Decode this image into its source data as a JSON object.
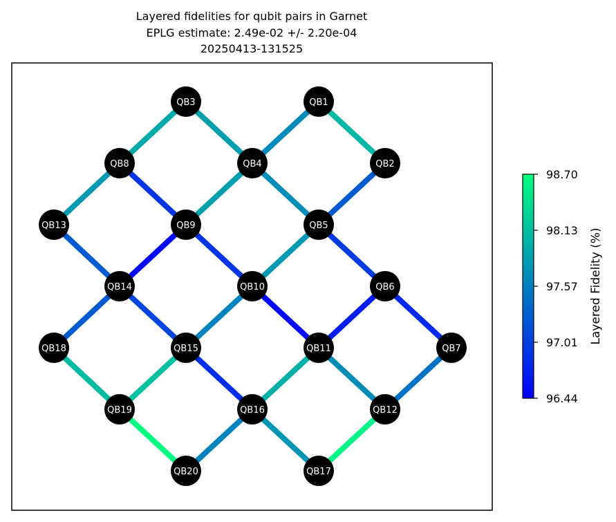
{
  "title_lines": [
    "Layered fidelities for qubit pairs in Garnet",
    "EPLG estimate: 2.49e-02 +/- 2.20e-04",
    "20250413-131525"
  ],
  "colorbar": {
    "label": "Layered Fidelity (%)",
    "ticks": [
      "98.70",
      "98.13",
      "97.57",
      "97.01",
      "96.44"
    ],
    "min": 96.44,
    "max": 98.7,
    "colormap": "winter",
    "color_low": "#0000ff",
    "color_high": "#00ff80"
  },
  "nodes": [
    "QB1",
    "QB2",
    "QB3",
    "QB4",
    "QB5",
    "QB6",
    "QB7",
    "QB8",
    "QB9",
    "QB10",
    "QB11",
    "QB12",
    "QB13",
    "QB14",
    "QB15",
    "QB16",
    "QB17",
    "QB18",
    "QB19",
    "QB20"
  ],
  "edges": [
    {
      "a": "QB3",
      "b": "QB8",
      "fidelity": 97.95
    },
    {
      "a": "QB3",
      "b": "QB4",
      "fidelity": 97.85
    },
    {
      "a": "QB1",
      "b": "QB4",
      "fidelity": 97.65
    },
    {
      "a": "QB1",
      "b": "QB2",
      "fidelity": 98.05
    },
    {
      "a": "QB8",
      "b": "QB13",
      "fidelity": 97.8
    },
    {
      "a": "QB8",
      "b": "QB9",
      "fidelity": 96.9
    },
    {
      "a": "QB4",
      "b": "QB9",
      "fidelity": 97.85
    },
    {
      "a": "QB4",
      "b": "QB5",
      "fidelity": 97.7
    },
    {
      "a": "QB2",
      "b": "QB5",
      "fidelity": 97.25
    },
    {
      "a": "QB13",
      "b": "QB14",
      "fidelity": 97.25
    },
    {
      "a": "QB9",
      "b": "QB14",
      "fidelity": 96.5
    },
    {
      "a": "QB9",
      "b": "QB10",
      "fidelity": 96.9
    },
    {
      "a": "QB5",
      "b": "QB10",
      "fidelity": 97.8
    },
    {
      "a": "QB5",
      "b": "QB6",
      "fidelity": 96.95
    },
    {
      "a": "QB14",
      "b": "QB18",
      "fidelity": 97.25
    },
    {
      "a": "QB14",
      "b": "QB15",
      "fidelity": 97.05
    },
    {
      "a": "QB10",
      "b": "QB15",
      "fidelity": 97.6
    },
    {
      "a": "QB10",
      "b": "QB11",
      "fidelity": 96.5
    },
    {
      "a": "QB6",
      "b": "QB11",
      "fidelity": 96.7
    },
    {
      "a": "QB6",
      "b": "QB7",
      "fidelity": 96.8
    },
    {
      "a": "QB18",
      "b": "QB19",
      "fidelity": 98.1
    },
    {
      "a": "QB15",
      "b": "QB19",
      "fidelity": 98.15
    },
    {
      "a": "QB15",
      "b": "QB16",
      "fidelity": 96.85
    },
    {
      "a": "QB11",
      "b": "QB16",
      "fidelity": 98.0
    },
    {
      "a": "QB11",
      "b": "QB12",
      "fidelity": 97.7
    },
    {
      "a": "QB7",
      "b": "QB12",
      "fidelity": 97.45
    },
    {
      "a": "QB19",
      "b": "QB20",
      "fidelity": 98.7
    },
    {
      "a": "QB16",
      "b": "QB20",
      "fidelity": 97.6
    },
    {
      "a": "QB16",
      "b": "QB17",
      "fidelity": 97.75
    },
    {
      "a": "QB12",
      "b": "QB17",
      "fidelity": 98.6
    }
  ]
}
